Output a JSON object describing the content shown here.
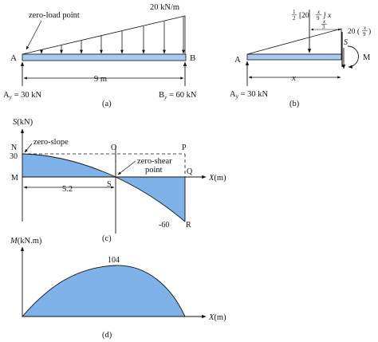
{
  "panel_a": {
    "caption": "(a)",
    "load_label": "20 kN/m",
    "zero_load_label": "zero-load point",
    "left_support": "A",
    "right_support": "B",
    "span_label": "9 m",
    "left_reaction": "A",
    "left_reaction_sub": "y",
    "left_reaction_val": " = 30 kN",
    "right_reaction": "B",
    "right_reaction_sub": "y",
    "right_reaction_val": " = 60 kN"
  },
  "panel_b": {
    "caption": "(b)",
    "resultant_label": "[20",
    "resultant_frac_num": "x",
    "resultant_frac_den": "9",
    "resultant_half_num": "1",
    "resultant_half_den": "2",
    "resultant_x": "] x",
    "third_num": "x",
    "third_den": "3",
    "intensity_label": "20 (",
    "intensity_close": ")",
    "intensity_num": "x",
    "intensity_den": "9",
    "shear_label": "S",
    "moment_label": "M",
    "support_label": "A",
    "distance_label": "x",
    "reaction": "A",
    "reaction_sub": "y",
    "reaction_val": " = 30 kN"
  },
  "panel_c": {
    "caption": "(c)",
    "y_axis_label": "S",
    "y_axis_unit": "(kN)",
    "x_axis_label": "X",
    "x_axis_unit": "(m)",
    "zero_slope_label": "zero-slope",
    "zero_shear_label_1": "zero-shear",
    "zero_shear_label_2": "point",
    "point_N": "N",
    "point_O": "O",
    "point_P": "P",
    "point_M": "M",
    "point_S": "S",
    "point_Q": "Q",
    "point_R": "R",
    "value_30": "30",
    "value_neg60": "-60",
    "dist_label": "5.2"
  },
  "panel_d": {
    "caption": "(d)",
    "y_axis_label": "M",
    "y_axis_unit": "(kN.m)",
    "x_axis_label": "X",
    "x_axis_unit": "(m)",
    "peak_label": "104"
  },
  "colors": {
    "fill": "#7fb2e8",
    "beam": "#a9c9ee",
    "stroke": "#111111"
  }
}
